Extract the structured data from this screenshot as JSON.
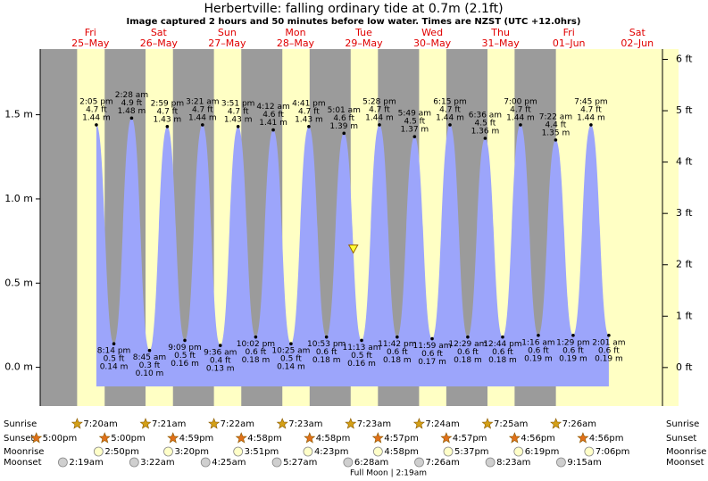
{
  "chart_data": {
    "type": "tide",
    "title": "Herbertville: falling  ordinary tide at 0.7m (2.1ft)",
    "subtitle": "Image captured 2 hours and 50 minutes before low water. Times are NZST (UTC +12.0hrs)",
    "color": "#9ca5fb",
    "ylim": [
      -0.23,
      1.89
    ],
    "yticks": [
      {
        "value": 0,
        "label": "0.0 m"
      },
      {
        "value": 0.5,
        "label": "0.5 m"
      },
      {
        "value": 1,
        "label": "1.0 m"
      },
      {
        "value": 1.5,
        "label": "1.5 m"
      }
    ],
    "y2lim": [
      -0.75,
      6.2
    ],
    "y2ticks": [
      {
        "value": 0,
        "label": "0 ft"
      },
      {
        "value": 1,
        "label": "1 ft"
      },
      {
        "value": 2,
        "label": "2 ft"
      },
      {
        "value": 3,
        "label": "3 ft"
      },
      {
        "value": 4,
        "label": "4 ft"
      },
      {
        "value": 5,
        "label": "5 ft"
      },
      {
        "value": 6,
        "label": "6 ft"
      }
    ],
    "now": {
      "height": 0.7
    },
    "days": [
      {
        "dow": "Fri",
        "date": "25–May"
      },
      {
        "dow": "Sat",
        "date": "26–May"
      },
      {
        "dow": "Sun",
        "date": "27–May"
      },
      {
        "dow": "Mon",
        "date": "28–May"
      },
      {
        "dow": "Tue",
        "date": "29–May"
      },
      {
        "dow": "Wed",
        "date": "30–May"
      },
      {
        "dow": "Thu",
        "date": "31–May"
      },
      {
        "dow": "Fri",
        "date": "01–Jun"
      },
      {
        "dow": "Sat",
        "date": "02–Jun"
      }
    ],
    "tides": [
      {
        "time": "2:05 pm",
        "ft": "4.7 ft",
        "height": 1.44,
        "height_label": "1.44 m"
      },
      {
        "time": "8:14 pm",
        "ft": "0.5 ft",
        "height": 0.14,
        "height_label": "0.14 m"
      },
      {
        "time": "2:28 am",
        "ft": "4.9 ft",
        "height": 1.48,
        "height_label": "1.48 m"
      },
      {
        "time": "8:45 am",
        "ft": "0.3 ft",
        "height": 0.1,
        "height_label": "0.10 m"
      },
      {
        "time": "2:59 pm",
        "ft": "4.7 ft",
        "height": 1.43,
        "height_label": "1.43 m"
      },
      {
        "time": "9:09 pm",
        "ft": "0.5 ft",
        "height": 0.16,
        "height_label": "0.16 m"
      },
      {
        "time": "3:21 am",
        "ft": "4.7 ft",
        "height": 1.44,
        "height_label": "1.44 m"
      },
      {
        "time": "9:36 am",
        "ft": "0.4 ft",
        "height": 0.13,
        "height_label": "0.13 m"
      },
      {
        "time": "3:51 pm",
        "ft": "4.7 ft",
        "height": 1.43,
        "height_label": "1.43 m"
      },
      {
        "time": "10:02 pm",
        "ft": "0.6 ft",
        "height": 0.18,
        "height_label": "0.18 m"
      },
      {
        "time": "4:12 am",
        "ft": "4.6 ft",
        "height": 1.41,
        "height_label": "1.41 m"
      },
      {
        "time": "10:25 am",
        "ft": "0.5 ft",
        "height": 0.14,
        "height_label": "0.14 m"
      },
      {
        "time": "4:41 pm",
        "ft": "4.7 ft",
        "height": 1.43,
        "height_label": "1.43 m"
      },
      {
        "time": "10:53 pm",
        "ft": "0.6 ft",
        "height": 0.18,
        "height_label": "0.18 m"
      },
      {
        "time": "5:01 am",
        "ft": "4.6 ft",
        "height": 1.39,
        "height_label": "1.39 m"
      },
      {
        "time": "11:13 am",
        "ft": "0.5 ft",
        "height": 0.16,
        "height_label": "0.16 m"
      },
      {
        "time": "5:28 pm",
        "ft": "4.7 ft",
        "height": 1.44,
        "height_label": "1.44 m"
      },
      {
        "time": "11:42 pm",
        "ft": "0.6 ft",
        "height": 0.18,
        "height_label": "0.18 m"
      },
      {
        "time": "5:49 am",
        "ft": "4.5 ft",
        "height": 1.37,
        "height_label": "1.37 m"
      },
      {
        "time": "11:59 am",
        "ft": "0.6 ft",
        "height": 0.17,
        "height_label": "0.17 m"
      },
      {
        "time": "6:15 pm",
        "ft": "4.7 ft",
        "height": 1.44,
        "height_label": "1.44 m"
      },
      {
        "time": "12:29 am",
        "ft": "0.6 ft",
        "height": 0.18,
        "height_label": "0.18 m"
      },
      {
        "time": "6:36 am",
        "ft": "4.5 ft",
        "height": 1.36,
        "height_label": "1.36 m"
      },
      {
        "time": "12:44 pm",
        "ft": "0.6 ft",
        "height": 0.18,
        "height_label": "0.18 m"
      },
      {
        "time": "7:00 pm",
        "ft": "4.7 ft",
        "height": 1.44,
        "height_label": "1.44 m"
      },
      {
        "time": "1:16 am",
        "ft": "0.6 ft",
        "height": 0.19,
        "height_label": "0.19 m"
      },
      {
        "time": "7:22 am",
        "ft": "4.4 ft",
        "height": 1.35,
        "height_label": "1.35 m"
      },
      {
        "time": "1:29 pm",
        "ft": "0.6 ft",
        "height": 0.19,
        "height_label": "0.19 m"
      },
      {
        "time": "7:45 pm",
        "ft": "4.7 ft",
        "height": 1.44,
        "height_label": "1.44 m"
      },
      {
        "time": "2:01 am",
        "ft": "0.6 ft",
        "height": 0.19,
        "height_label": "0.19 m"
      }
    ]
  },
  "rows": [
    {
      "label": "Sunrise",
      "times": [
        "7:20am",
        "7:21am",
        "7:22am",
        "7:23am",
        "7:23am",
        "7:24am",
        "7:25am",
        "7:26am"
      ]
    },
    {
      "label": "Sunset",
      "times": [
        "5:00pm",
        "5:00pm",
        "4:59pm",
        "4:58pm",
        "4:58pm",
        "4:57pm",
        "4:57pm",
        "4:56pm",
        "4:56pm"
      ]
    },
    {
      "label": "Moonrise",
      "times": [
        "2:50pm",
        "3:20pm",
        "3:51pm",
        "4:23pm",
        "4:58pm",
        "5:37pm",
        "6:19pm",
        "7:06pm"
      ]
    },
    {
      "label": "Moonset",
      "times": [
        "2:19am",
        "3:22am",
        "4:25am",
        "5:27am",
        "6:28am",
        "7:26am",
        "8:23am",
        "9:15am"
      ]
    }
  ],
  "footer": "Full Moon | 2:19am"
}
